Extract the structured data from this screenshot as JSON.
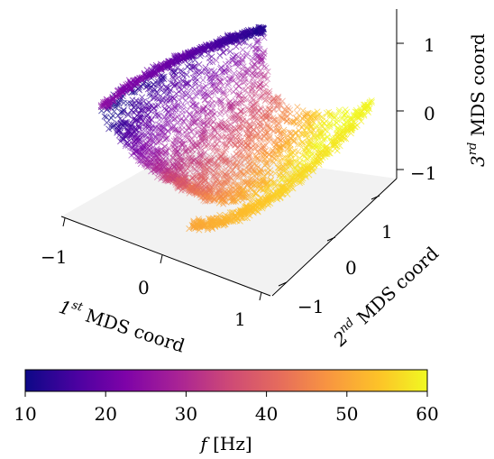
{
  "chart_data": {
    "type": "scatter",
    "subtype": "3d-scatter",
    "marker": "x",
    "colormap": "plasma",
    "xlabel": {
      "pre": "1",
      "sup": "st",
      "post": " MDS coord"
    },
    "ylabel": {
      "pre": "2",
      "sup": "nd",
      "post": " MDS coord"
    },
    "zlabel": {
      "pre": "3",
      "sup": "rd",
      "post": " MDS coord"
    },
    "x_ticks": [
      "−1",
      "0",
      "1"
    ],
    "y_ticks": [
      "−1",
      "0",
      "1"
    ],
    "z_ticks": [
      "−1",
      "0",
      "1"
    ],
    "xlim": [
      -1.3,
      1.3
    ],
    "ylim": [
      -1.3,
      1.3
    ],
    "zlim": [
      -1.3,
      1.3
    ],
    "colorbar": {
      "label_var": "f",
      "label_unit": " [Hz]",
      "ticks": [
        "10",
        "20",
        "30",
        "40",
        "50",
        "60"
      ],
      "range": [
        10,
        60
      ]
    },
    "point_cloud": {
      "description": "curved surface (twisted sheet) of MDS embedding coloured by frequency",
      "f_range": [
        10,
        60
      ]
    }
  }
}
